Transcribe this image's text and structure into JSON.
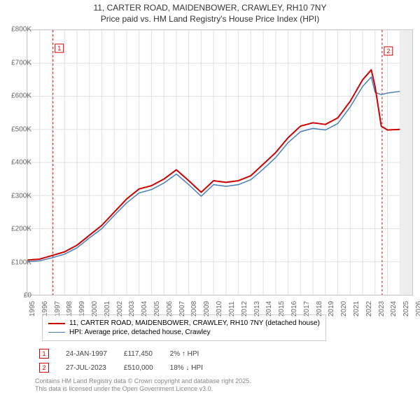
{
  "title": {
    "line1": "11, CARTER ROAD, MAIDENBOWER, CRAWLEY, RH10 7NY",
    "line2": "Price paid vs. HM Land Registry's House Price Index (HPI)",
    "fontsize": 12,
    "color": "#333333"
  },
  "chart": {
    "type": "line",
    "background_color": "#ffffff",
    "plot_border_color": "#cccccc",
    "grid_color": "#e0e0e0",
    "x": {
      "min": 1995,
      "max": 2026,
      "ticks": [
        1995,
        1996,
        1997,
        1998,
        1999,
        2000,
        2001,
        2002,
        2003,
        2004,
        2005,
        2006,
        2007,
        2008,
        2009,
        2010,
        2011,
        2012,
        2013,
        2014,
        2015,
        2016,
        2017,
        2018,
        2019,
        2020,
        2021,
        2022,
        2023,
        2024,
        2025,
        2026
      ],
      "label_fontsize": 10,
      "label_color": "#666666"
    },
    "y": {
      "min": 0,
      "max": 800000,
      "tick_step": 100000,
      "tick_labels": [
        "£0",
        "£100K",
        "£200K",
        "£300K",
        "£400K",
        "£500K",
        "£600K",
        "£700K",
        "£800K"
      ],
      "label_fontsize": 10,
      "label_color": "#666666"
    },
    "series": [
      {
        "name": "property",
        "label": "11, CARTER ROAD, MAIDENBOWER, CRAWLEY, RH10 7NY (detached house)",
        "color": "#cc0000",
        "line_width": 2,
        "data": [
          [
            1995,
            105000
          ],
          [
            1996,
            108000
          ],
          [
            1997,
            119000
          ],
          [
            1998,
            130000
          ],
          [
            1999,
            150000
          ],
          [
            2000,
            180000
          ],
          [
            2001,
            210000
          ],
          [
            2002,
            250000
          ],
          [
            2003,
            290000
          ],
          [
            2004,
            320000
          ],
          [
            2005,
            330000
          ],
          [
            2006,
            350000
          ],
          [
            2007,
            378000
          ],
          [
            2008,
            345000
          ],
          [
            2009,
            310000
          ],
          [
            2010,
            345000
          ],
          [
            2011,
            340000
          ],
          [
            2012,
            345000
          ],
          [
            2013,
            360000
          ],
          [
            2014,
            395000
          ],
          [
            2015,
            430000
          ],
          [
            2016,
            475000
          ],
          [
            2017,
            510000
          ],
          [
            2018,
            520000
          ],
          [
            2019,
            515000
          ],
          [
            2020,
            535000
          ],
          [
            2021,
            585000
          ],
          [
            2022,
            650000
          ],
          [
            2022.7,
            680000
          ],
          [
            2023,
            630000
          ],
          [
            2023.5,
            510000
          ],
          [
            2024,
            498000
          ],
          [
            2025,
            500000
          ]
        ]
      },
      {
        "name": "hpi",
        "label": "HPI: Average price, detached house, Crawley",
        "color": "#4a7ebb",
        "line_width": 1.5,
        "data": [
          [
            1995,
            100000
          ],
          [
            1996,
            103000
          ],
          [
            1997,
            112000
          ],
          [
            1998,
            123000
          ],
          [
            1999,
            142000
          ],
          [
            2000,
            172000
          ],
          [
            2001,
            200000
          ],
          [
            2002,
            240000
          ],
          [
            2003,
            278000
          ],
          [
            2004,
            308000
          ],
          [
            2005,
            318000
          ],
          [
            2006,
            338000
          ],
          [
            2007,
            365000
          ],
          [
            2008,
            333000
          ],
          [
            2009,
            298000
          ],
          [
            2010,
            333000
          ],
          [
            2011,
            328000
          ],
          [
            2012,
            333000
          ],
          [
            2013,
            348000
          ],
          [
            2014,
            380000
          ],
          [
            2015,
            415000
          ],
          [
            2016,
            460000
          ],
          [
            2017,
            493000
          ],
          [
            2018,
            503000
          ],
          [
            2019,
            498000
          ],
          [
            2020,
            518000
          ],
          [
            2021,
            568000
          ],
          [
            2022,
            630000
          ],
          [
            2022.7,
            658000
          ],
          [
            2023,
            612000
          ],
          [
            2023.5,
            605000
          ],
          [
            2024,
            610000
          ],
          [
            2025,
            615000
          ]
        ]
      }
    ],
    "markers": [
      {
        "id": "1",
        "x": 1997.07,
        "y": 117450,
        "color": "#cc0000"
      },
      {
        "id": "2",
        "x": 2023.57,
        "y": 510000,
        "color": "#cc0000"
      }
    ],
    "marker_lines": [
      {
        "x": 1997.07,
        "color": "#cc0000",
        "dash": "3,3"
      },
      {
        "x": 2023.57,
        "color": "#cc0000",
        "dash": "3,3"
      }
    ],
    "shade_after": {
      "x": 2025,
      "color": "#eeeeee"
    }
  },
  "transactions": {
    "rows": [
      {
        "marker": "1",
        "date": "24-JAN-1997",
        "price": "£117,450",
        "change": "2% ↑ HPI"
      },
      {
        "marker": "2",
        "date": "27-JUL-2023",
        "price": "£510,000",
        "change": "18% ↓ HPI"
      }
    ],
    "marker_color": "#cc0000"
  },
  "footer": {
    "line1": "Contains HM Land Registry data © Crown copyright and database right 2025.",
    "line2": "This data is licensed under the Open Government Licence v3.0.",
    "color": "#888888",
    "fontsize": 9
  }
}
